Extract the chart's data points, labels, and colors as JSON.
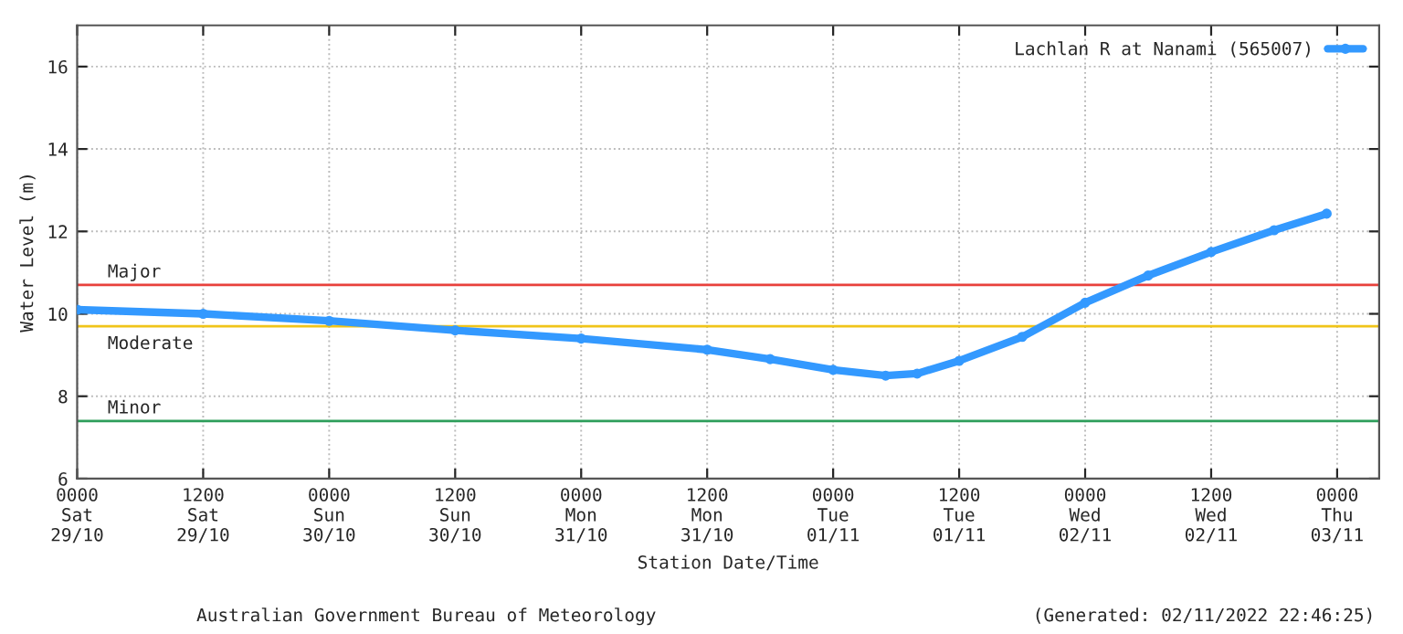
{
  "chart_data": {
    "type": "line",
    "xlabel": "Station Date/Time",
    "ylabel": "Water Level (m)",
    "x": [
      "2022-10-29T00:00",
      "2022-10-29T12:00",
      "2022-10-30T00:00",
      "2022-10-30T12:00",
      "2022-10-31T00:00",
      "2022-10-31T12:00",
      "2022-10-31T18:00",
      "2022-11-01T00:00",
      "2022-11-01T05:00",
      "2022-11-01T08:00",
      "2022-11-01T12:00",
      "2022-11-01T18:00",
      "2022-11-02T00:00",
      "2022-11-02T06:00",
      "2022-11-02T12:00",
      "2022-11-02T18:00",
      "2022-11-02T23:00"
    ],
    "series": [
      {
        "name": "Lachlan R at Nanami (565007)",
        "color": "#3399ff",
        "values": [
          10.1,
          10.0,
          9.83,
          9.6,
          9.4,
          9.13,
          8.9,
          8.64,
          8.5,
          8.55,
          8.86,
          9.44,
          10.27,
          10.93,
          11.5,
          12.03,
          12.43
        ]
      }
    ],
    "xlim": [
      "2022-10-29T00:00",
      "2022-11-03T04:00"
    ],
    "ylim": [
      6,
      17
    ],
    "xticks": [
      {
        "value": "2022-10-29T00:00",
        "label": "0000\nSat\n29/10"
      },
      {
        "value": "2022-10-29T12:00",
        "label": "1200\nSat\n29/10"
      },
      {
        "value": "2022-10-30T00:00",
        "label": "0000\nSun\n30/10"
      },
      {
        "value": "2022-10-30T12:00",
        "label": "1200\nSun\n30/10"
      },
      {
        "value": "2022-10-31T00:00",
        "label": "0000\nMon\n31/10"
      },
      {
        "value": "2022-10-31T12:00",
        "label": "1200\nMon\n31/10"
      },
      {
        "value": "2022-11-01T00:00",
        "label": "0000\nTue\n01/11"
      },
      {
        "value": "2022-11-01T12:00",
        "label": "1200\nTue\n01/11"
      },
      {
        "value": "2022-11-02T00:00",
        "label": "0000\nWed\n02/11"
      },
      {
        "value": "2022-11-02T12:00",
        "label": "1200\nWed\n02/11"
      },
      {
        "value": "2022-11-03T00:00",
        "label": "0000\nThu\n03/11"
      }
    ],
    "yticks": [
      6,
      8,
      10,
      12,
      14,
      16
    ],
    "ref_lines": [
      {
        "axis": "y",
        "value": 10.7,
        "label": "Major",
        "color": "#e8413c"
      },
      {
        "axis": "y",
        "value": 9.7,
        "label": "Moderate",
        "color": "#f0c419"
      },
      {
        "axis": "y",
        "value": 7.4,
        "label": "Minor",
        "color": "#2e9e5b"
      }
    ],
    "annotations": [
      "Australian Government Bureau of Meteorology",
      "(Generated: 02/11/2022 22:46:25)"
    ],
    "grid": true,
    "legend": "top right",
    "marker": "circle",
    "line_style": "solid"
  }
}
